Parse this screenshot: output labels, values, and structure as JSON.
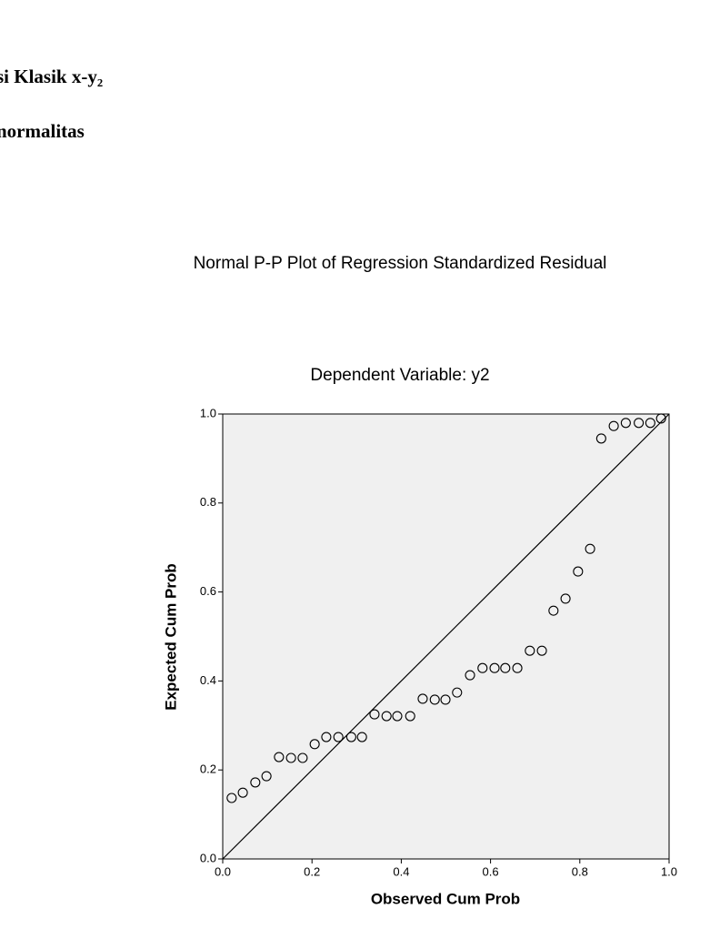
{
  "header": {
    "heading": "si Klasik x-y₂",
    "subheading": "normalitas"
  },
  "chart_data": {
    "type": "scatter",
    "title": "Normal P-P Plot of Regression Standardized Residual",
    "subtitle": "Dependent Variable: y2",
    "x_label": "Observed Cum Prob",
    "y_label": "Expected Cum Prob",
    "x": [
      0.02,
      0.045,
      0.073,
      0.098,
      0.126,
      0.153,
      0.179,
      0.206,
      0.232,
      0.259,
      0.288,
      0.312,
      0.34,
      0.367,
      0.391,
      0.42,
      0.448,
      0.475,
      0.499,
      0.525,
      0.554,
      0.582,
      0.609,
      0.633,
      0.66,
      0.688,
      0.715,
      0.741,
      0.768,
      0.796,
      0.823,
      0.848,
      0.876,
      0.903,
      0.932,
      0.958,
      0.982
    ],
    "values": [
      0.137,
      0.149,
      0.172,
      0.186,
      0.229,
      0.227,
      0.227,
      0.258,
      0.274,
      0.274,
      0.274,
      0.274,
      0.325,
      0.321,
      0.321,
      0.321,
      0.36,
      0.358,
      0.358,
      0.374,
      0.413,
      0.429,
      0.429,
      0.429,
      0.429,
      0.468,
      0.468,
      0.558,
      0.585,
      0.646,
      0.697,
      0.945,
      0.973,
      0.98,
      0.98,
      0.98,
      0.99
    ],
    "color": "#000000",
    "xlim": [
      0,
      1
    ],
    "ylim": [
      0,
      1
    ],
    "xticks": [
      {
        "value": 0,
        "label": "0.0"
      },
      0.2,
      0.4,
      0.6,
      0.8,
      {
        "value": 1,
        "label": "1.0"
      }
    ],
    "yticks": [
      {
        "value": 0,
        "label": "0.0"
      },
      0.2,
      0.4,
      0.6,
      0.8,
      {
        "value": 1,
        "label": "1.0"
      }
    ]
  }
}
